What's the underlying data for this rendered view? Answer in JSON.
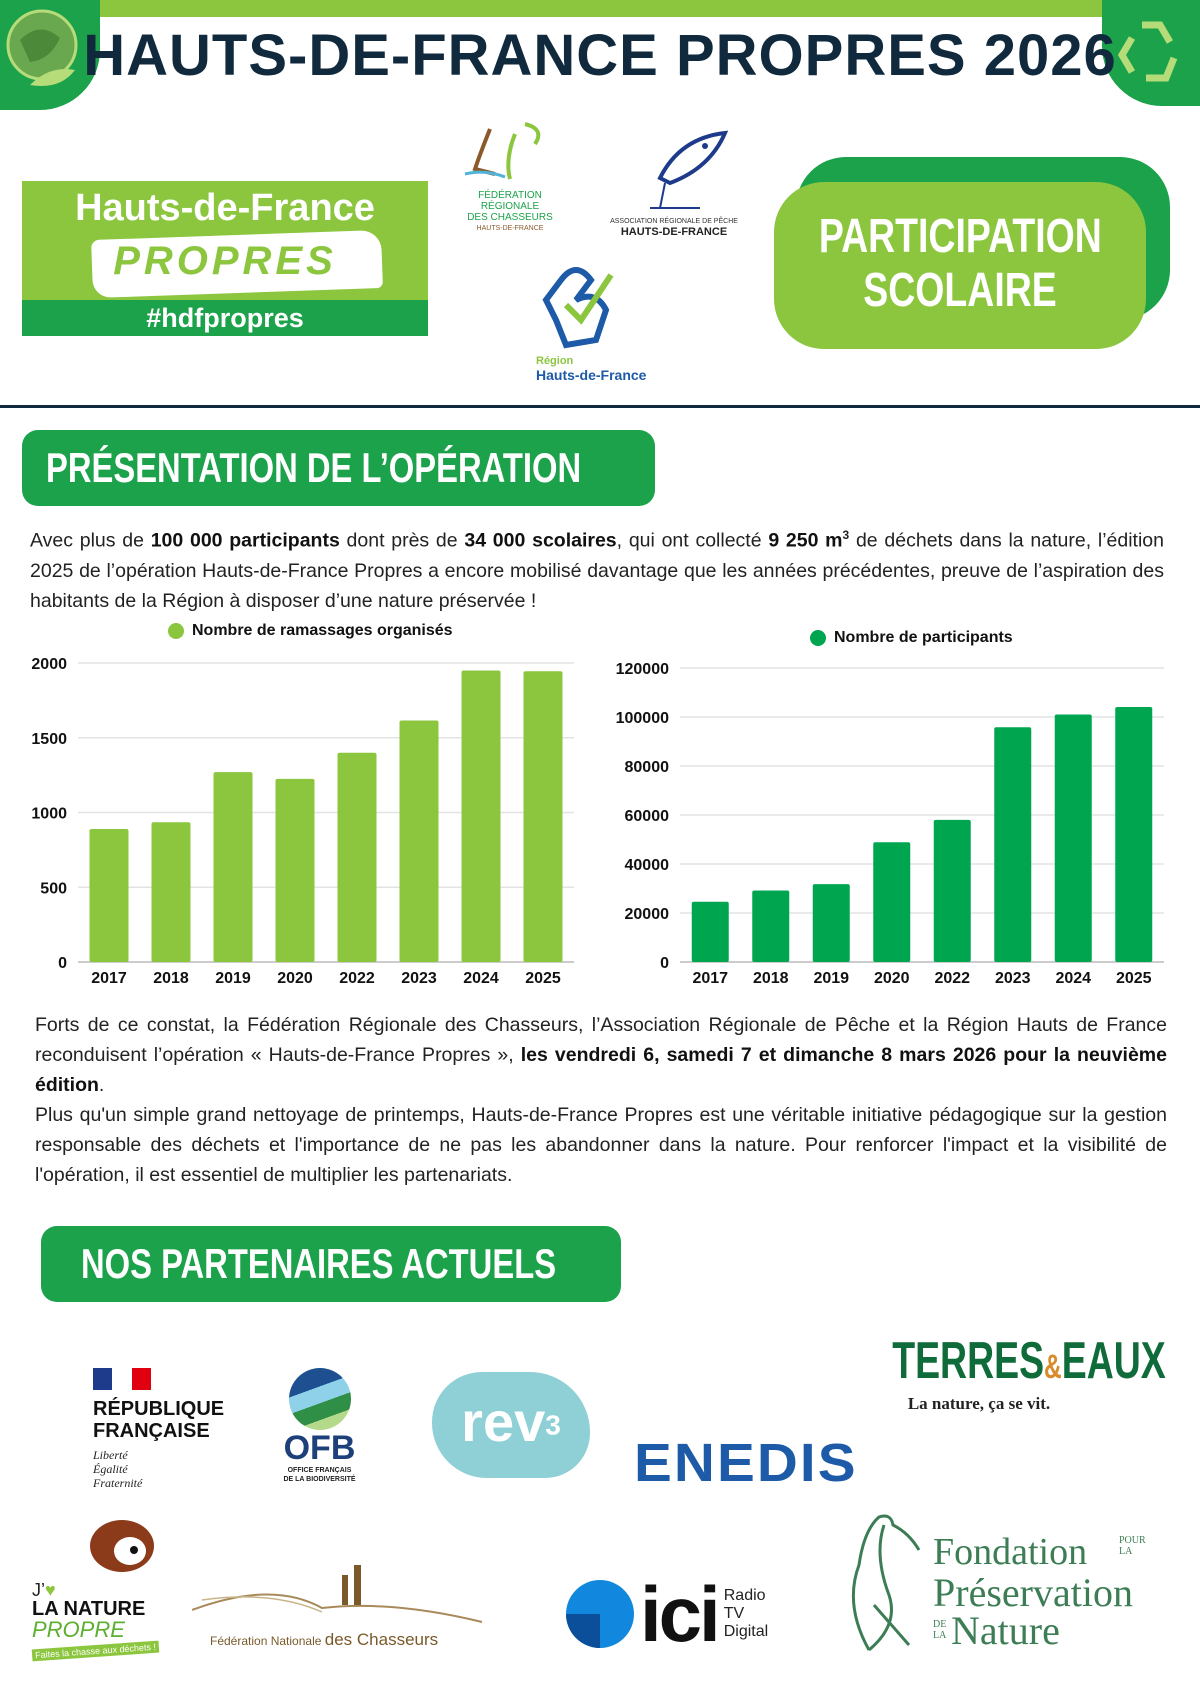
{
  "header": {
    "title": "HAUTS-DE-FRANCE PROPRES 2026",
    "left_corner_icon": "earth-leaf-icon",
    "right_corner_icon": "recycle-icon"
  },
  "logos": {
    "hdf_propres": {
      "line1": "Hauts-de-France",
      "line2": "PROPRES",
      "hashtag": "#hdfpropres"
    },
    "frc": {
      "lines": [
        "FÉDÉRATION",
        "RÉGIONALE",
        "DES CHASSEURS",
        "HAUTS-DE-FRANCE"
      ]
    },
    "arp": {
      "line1": "ASSOCIATION RÉGIONALE DE PÊCHE",
      "line2": "HAUTS-DE-FRANCE"
    },
    "region": {
      "line1": "Région",
      "line2": "Hauts-de-France"
    }
  },
  "badge": {
    "line1": "PARTICIPATION",
    "line2": "SCOLAIRE"
  },
  "section1": {
    "title": "PRÉSENTATION DE L’OPÉRATION",
    "p1": {
      "a": "Avec plus de ",
      "b": "100 000 participants",
      "c": " dont près de ",
      "d": "34 000 scolaires",
      "e": ", qui ont collecté ",
      "f": "9 250 m",
      "sup": "3",
      "g": " de déchets dans la nature, l’édition 2025 de l’opération Hauts-de-France Propres a encore mobilisé davantage que les années précédentes, preuve de l’aspiration des habitants de la Région à disposer d’une nature préservée !"
    }
  },
  "chart_data": [
    {
      "type": "bar",
      "title": "",
      "legend": "Nombre de ramassages organisés",
      "legend_placement": "top",
      "categories": [
        "2017",
        "2018",
        "2019",
        "2020",
        "2022",
        "2023",
        "2024",
        "2025"
      ],
      "series": [
        {
          "name": "Nombre de ramassages organisés",
          "values": [
            890,
            935,
            1270,
            1225,
            1400,
            1615,
            1950,
            1945
          ]
        }
      ],
      "yticks": [
        0,
        500,
        1000,
        1500,
        2000
      ],
      "ylim": [
        0,
        2000
      ],
      "grid": true,
      "color": "#8cc63f"
    },
    {
      "type": "bar",
      "title": "",
      "legend": "Nombre de participants",
      "legend_placement": "top",
      "categories": [
        "2017",
        "2018",
        "2019",
        "2020",
        "2022",
        "2023",
        "2024",
        "2025"
      ],
      "series": [
        {
          "name": "Nombre de participants",
          "values": [
            24600,
            29200,
            31800,
            48900,
            58000,
            95800,
            101000,
            104100
          ]
        }
      ],
      "yticks": [
        0,
        20000,
        40000,
        60000,
        80000,
        100000,
        120000
      ],
      "ylim": [
        0,
        120000
      ],
      "grid": true,
      "color": "#00a550"
    }
  ],
  "section2": {
    "p2a": "Forts de ce constat, la Fédération Régionale des Chasseurs, l’Association Régionale de Pêche et la Région Hauts de France reconduisent l’opération « Hauts-de-France Propres », ",
    "p2b": "les vendredi 6, samedi 7 et dimanche 8 mars 2026 pour la neuvième édition",
    "p2c": ".",
    "p3": "Plus qu'un simple grand nettoyage de printemps, Hauts-de-France Propres est une véritable initiative pédagogique sur la gestion responsable des déchets et l'importance de ne pas les abandonner dans la nature. Pour renforcer l'impact et la visibilité de l'opération, il est essentiel de multiplier les partenariats."
  },
  "partners": {
    "title": "NOS PARTENAIRES ACTUELS",
    "rf": {
      "l1": "RÉPUBLIQUE",
      "l2": "FRANÇAISE",
      "m1": "Liberté",
      "m2": "Égalité",
      "m3": "Fraternité"
    },
    "ofb": {
      "name": "OFB",
      "l1": "OFFICE FRANÇAIS",
      "l2": "DE LA BIODIVERSITÉ"
    },
    "rev3": {
      "name": "rev",
      "sup": "3"
    },
    "terres": {
      "a": "TERRES",
      "amp": "&",
      "b": "EAUX",
      "tag": "La nature, ça se vit."
    },
    "enedis": {
      "name": "ENEDIS"
    },
    "jaime": {
      "j": "J’",
      "l1": "LA NATURE",
      "l2": "PROPRE",
      "tag": "Faites la chasse aux déchets !"
    },
    "fnc": {
      "a": "Fédération Nationale ",
      "b": "des Chasseurs"
    },
    "ici": {
      "name": "ici",
      "l1": "Radio",
      "l2": "TV",
      "l3": "Digital"
    },
    "fpn": {
      "l1": "Fondation",
      "pour": "POUR",
      "la": "LA",
      "l2": "Préservation",
      "de": "DE",
      "la2": "LA",
      "l3": "Nature"
    }
  },
  "colors": {
    "navy": "#10293d",
    "light_green": "#8cc63f",
    "green": "#1ba24a",
    "chart_green": "#00a550"
  }
}
